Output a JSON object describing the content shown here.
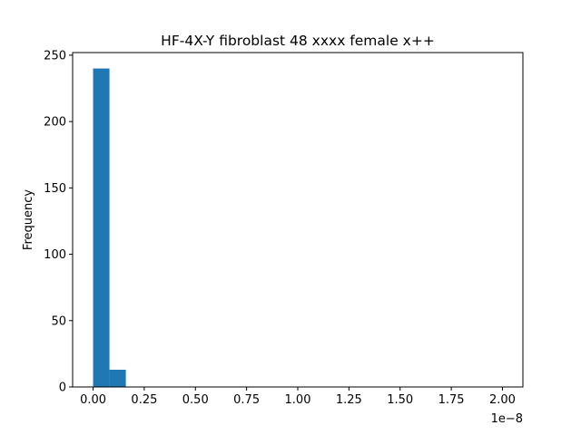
{
  "chart_data": {
    "type": "bar",
    "title": "HF-4X-Y fibroblast 48 xxxx female x++",
    "xlabel": "",
    "ylabel": "Frequency",
    "x_offset_label": "1e−8",
    "xlim": [
      -0.1,
      2.1
    ],
    "ylim": [
      0,
      252
    ],
    "x_ticks": [
      0.0,
      0.25,
      0.5,
      0.75,
      1.0,
      1.25,
      1.5,
      1.75,
      2.0
    ],
    "x_tick_labels": [
      "0.00",
      "0.25",
      "0.50",
      "0.75",
      "1.00",
      "1.25",
      "1.50",
      "1.75",
      "2.00"
    ],
    "y_ticks": [
      0,
      50,
      100,
      150,
      200,
      250
    ],
    "y_tick_labels": [
      "0",
      "50",
      "100",
      "150",
      "200",
      "250"
    ],
    "bins": [
      {
        "x0": 0.0,
        "x1": 0.08,
        "value": 240
      },
      {
        "x0": 0.08,
        "x1": 0.16,
        "value": 13
      }
    ],
    "grid": false,
    "color": "#1f77b4"
  }
}
